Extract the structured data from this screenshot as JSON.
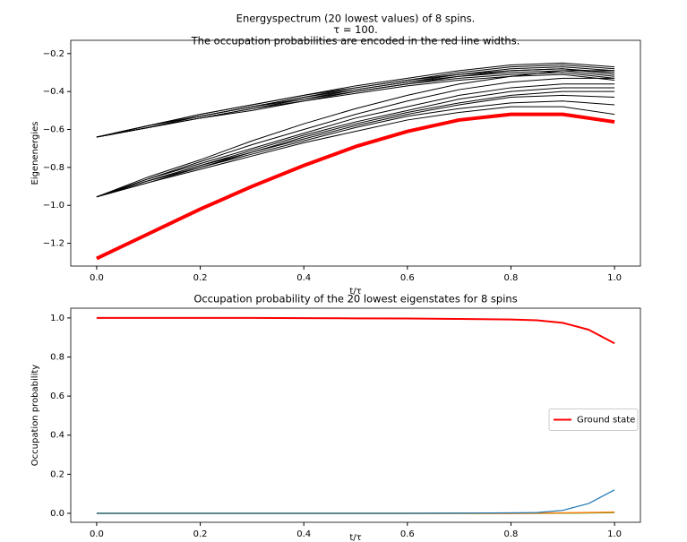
{
  "chart_data": [
    {
      "type": "line",
      "title": [
        "Energyspectrum (20 lowest values) of 8 spins.",
        "τ = 100.",
        "The occupation probabilities are encoded in the red line widths."
      ],
      "xlabel": "t/τ",
      "ylabel": "Eigenenergies",
      "x": [
        0,
        0.1,
        0.2,
        0.3,
        0.4,
        0.5,
        0.6,
        0.7,
        0.8,
        0.9,
        1.0
      ],
      "xlim": [
        -0.05,
        1.05
      ],
      "xticks": [
        {
          "value": 0,
          "label": "0.0"
        },
        {
          "value": 0.2,
          "label": "0.2"
        },
        {
          "value": 0.4,
          "label": "0.4"
        },
        {
          "value": 0.6,
          "label": "0.6"
        },
        {
          "value": 0.8,
          "label": "0.8"
        },
        {
          "value": 1.0,
          "label": "1.0"
        }
      ],
      "ylim": [
        -1.32,
        -0.13
      ],
      "yticks": [
        {
          "value": -1.2,
          "label": "−1.2"
        },
        {
          "value": -1.0,
          "label": "−1.0"
        },
        {
          "value": -0.8,
          "label": "−0.8"
        },
        {
          "value": -0.6,
          "label": "−0.6"
        },
        {
          "value": -0.4,
          "label": "−0.4"
        },
        {
          "value": -0.2,
          "label": "−0.2"
        }
      ],
      "series": [
        {
          "color": "#000000",
          "linewidth": 1,
          "values": [
            -0.64,
            -0.58,
            -0.52,
            -0.47,
            -0.42,
            -0.37,
            -0.33,
            -0.29,
            -0.26,
            -0.25,
            -0.27
          ]
        },
        {
          "color": "#000000",
          "linewidth": 1,
          "values": [
            -0.64,
            -0.58,
            -0.52,
            -0.47,
            -0.42,
            -0.38,
            -0.34,
            -0.3,
            -0.27,
            -0.26,
            -0.28
          ]
        },
        {
          "color": "#000000",
          "linewidth": 1,
          "values": [
            -0.64,
            -0.58,
            -0.53,
            -0.48,
            -0.43,
            -0.38,
            -0.34,
            -0.31,
            -0.28,
            -0.27,
            -0.29
          ]
        },
        {
          "color": "#000000",
          "linewidth": 1,
          "values": [
            -0.64,
            -0.58,
            -0.53,
            -0.48,
            -0.43,
            -0.39,
            -0.35,
            -0.31,
            -0.29,
            -0.28,
            -0.3
          ]
        },
        {
          "color": "#000000",
          "linewidth": 1,
          "values": [
            -0.64,
            -0.59,
            -0.53,
            -0.48,
            -0.44,
            -0.39,
            -0.35,
            -0.32,
            -0.29,
            -0.28,
            -0.31
          ]
        },
        {
          "color": "#000000",
          "linewidth": 1,
          "values": [
            -0.64,
            -0.59,
            -0.54,
            -0.49,
            -0.44,
            -0.4,
            -0.36,
            -0.32,
            -0.3,
            -0.29,
            -0.32
          ]
        },
        {
          "color": "#000000",
          "linewidth": 1,
          "values": [
            -0.64,
            -0.59,
            -0.54,
            -0.49,
            -0.45,
            -0.4,
            -0.36,
            -0.33,
            -0.31,
            -0.3,
            -0.33
          ]
        },
        {
          "color": "#000000",
          "linewidth": 1,
          "values": [
            -0.64,
            -0.59,
            -0.54,
            -0.5,
            -0.45,
            -0.41,
            -0.37,
            -0.34,
            -0.32,
            -0.31,
            -0.34
          ]
        },
        {
          "color": "#000000",
          "linewidth": 1,
          "values": [
            -0.955,
            -0.85,
            -0.76,
            -0.66,
            -0.57,
            -0.49,
            -0.42,
            -0.36,
            -0.32,
            -0.29,
            -0.29
          ]
        },
        {
          "color": "#000000",
          "linewidth": 1,
          "values": [
            -0.955,
            -0.86,
            -0.77,
            -0.68,
            -0.6,
            -0.52,
            -0.45,
            -0.39,
            -0.35,
            -0.33,
            -0.33
          ]
        },
        {
          "color": "#000000",
          "linewidth": 1,
          "values": [
            -0.955,
            -0.86,
            -0.78,
            -0.7,
            -0.62,
            -0.54,
            -0.48,
            -0.42,
            -0.38,
            -0.36,
            -0.36
          ]
        },
        {
          "color": "#000000",
          "linewidth": 1,
          "values": [
            -0.955,
            -0.87,
            -0.79,
            -0.71,
            -0.63,
            -0.56,
            -0.5,
            -0.44,
            -0.4,
            -0.38,
            -0.38
          ]
        },
        {
          "color": "#000000",
          "linewidth": 1,
          "values": [
            -0.955,
            -0.87,
            -0.79,
            -0.72,
            -0.64,
            -0.57,
            -0.51,
            -0.46,
            -0.42,
            -0.4,
            -0.4
          ]
        },
        {
          "color": "#000000",
          "linewidth": 1,
          "values": [
            -0.955,
            -0.87,
            -0.8,
            -0.72,
            -0.65,
            -0.58,
            -0.52,
            -0.47,
            -0.43,
            -0.42,
            -0.43
          ]
        },
        {
          "color": "#000000",
          "linewidth": 1,
          "values": [
            -0.955,
            -0.88,
            -0.8,
            -0.73,
            -0.66,
            -0.59,
            -0.53,
            -0.49,
            -0.46,
            -0.45,
            -0.47
          ]
        },
        {
          "color": "#000000",
          "linewidth": 1,
          "values": [
            -0.955,
            -0.88,
            -0.81,
            -0.74,
            -0.67,
            -0.61,
            -0.55,
            -0.51,
            -0.48,
            -0.48,
            -0.52
          ]
        },
        {
          "color": "#ff0000",
          "linewidth": 4,
          "values": [
            -1.28,
            -1.15,
            -1.02,
            -0.9,
            -0.79,
            -0.69,
            -0.61,
            -0.55,
            -0.52,
            -0.52,
            -0.56
          ]
        }
      ]
    },
    {
      "type": "line",
      "title": [
        "Occupation probability of the 20 lowest eigenstates for 8 spins"
      ],
      "xlabel": "t/τ",
      "ylabel": "Occupation probability",
      "x": [
        0,
        0.1,
        0.2,
        0.3,
        0.4,
        0.5,
        0.6,
        0.7,
        0.8,
        0.85,
        0.9,
        0.95,
        1.0
      ],
      "xlim": [
        -0.05,
        1.05
      ],
      "xticks": [
        {
          "value": 0,
          "label": "0.0"
        },
        {
          "value": 0.2,
          "label": "0.2"
        },
        {
          "value": 0.4,
          "label": "0.4"
        },
        {
          "value": 0.6,
          "label": "0.6"
        },
        {
          "value": 0.8,
          "label": "0.8"
        },
        {
          "value": 1.0,
          "label": "1.0"
        }
      ],
      "ylim": [
        -0.046,
        1.05
      ],
      "yticks": [
        {
          "value": 0,
          "label": "0.0"
        },
        {
          "value": 0.2,
          "label": "0.2"
        },
        {
          "value": 0.4,
          "label": "0.4"
        },
        {
          "value": 0.6,
          "label": "0.6"
        },
        {
          "value": 0.8,
          "label": "0.8"
        },
        {
          "value": 1.0,
          "label": "1.0"
        }
      ],
      "legend": "center right",
      "series": [
        {
          "color": "#2ca02c",
          "linewidth": 1.5,
          "values": [
            0,
            0,
            0,
            0,
            0,
            0,
            0,
            0,
            0,
            0,
            0.001,
            0.002,
            0.004
          ]
        },
        {
          "color": "#ff7f0e",
          "linewidth": 1.5,
          "values": [
            0,
            0,
            0,
            0,
            0,
            0,
            0,
            0,
            0,
            0.001,
            0.002,
            0.004,
            0.006
          ]
        },
        {
          "color": "#1f77b4",
          "linewidth": 1.2,
          "values": [
            0,
            0,
            0,
            0,
            0,
            0,
            0,
            0.001,
            0.002,
            0.004,
            0.015,
            0.05,
            0.12
          ]
        },
        {
          "name": "Ground state",
          "color": "#ff0000",
          "linewidth": 2,
          "values": [
            1.0,
            1.0,
            1.0,
            1.0,
            0.999,
            0.998,
            0.997,
            0.995,
            0.992,
            0.988,
            0.975,
            0.94,
            0.87
          ]
        }
      ]
    }
  ]
}
